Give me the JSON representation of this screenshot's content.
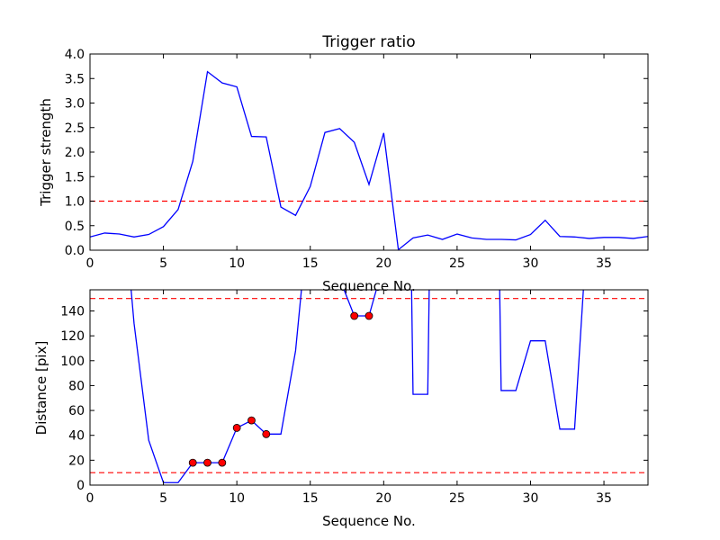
{
  "chart_data": [
    {
      "type": "line",
      "title": "Trigger ratio",
      "xlabel": "Sequence No.",
      "ylabel": "Trigger strength",
      "xlim": [
        0,
        38
      ],
      "ylim": [
        0,
        4
      ],
      "xticks": [
        "0",
        "5",
        "10",
        "15",
        "20",
        "25",
        "30",
        "35"
      ],
      "yticks": [
        "0.0",
        "0.5",
        "1.0",
        "1.5",
        "2.0",
        "2.5",
        "3.0",
        "3.5",
        "4.0"
      ],
      "threshold_lines": [
        1.0
      ],
      "line_color": "#0000ff",
      "threshold_color": "#ff0000",
      "series": [
        {
          "x": [
            0,
            1,
            2,
            3,
            4,
            5,
            6,
            7,
            8,
            9,
            10,
            11,
            12,
            13,
            14,
            15,
            16,
            17,
            18,
            19,
            20,
            21,
            22,
            23,
            24,
            25,
            26,
            27,
            28,
            29,
            30,
            31,
            32,
            33,
            34,
            35,
            36,
            37,
            38
          ],
          "values": [
            0.27,
            0.35,
            0.33,
            0.27,
            0.32,
            0.48,
            0.83,
            1.81,
            3.64,
            3.41,
            3.33,
            2.32,
            2.31,
            0.88,
            0.71,
            1.3,
            2.4,
            2.48,
            2.2,
            1.34,
            2.39,
            0.01,
            0.25,
            0.31,
            0.22,
            0.33,
            0.25,
            0.22,
            0.22,
            0.21,
            0.32,
            0.61,
            0.28,
            0.27,
            0.24,
            0.26,
            0.26,
            0.24,
            0.28
          ]
        }
      ]
    },
    {
      "type": "line",
      "title": "",
      "xlabel": "Sequence No.",
      "ylabel": "Distance [pix]",
      "xlim": [
        0,
        38
      ],
      "ylim": [
        0,
        157
      ],
      "xticks": [
        "0",
        "5",
        "10",
        "15",
        "20",
        "25",
        "30",
        "35"
      ],
      "yticks": [
        "0",
        "20",
        "40",
        "60",
        "80",
        "100",
        "120",
        "140"
      ],
      "threshold_lines": [
        10,
        150
      ],
      "line_color": "#0000ff",
      "threshold_color": "#ff0000",
      "marker_color": "#ff0000",
      "series": [
        {
          "x": [
            2.8,
            3,
            4,
            5,
            6,
            7,
            8,
            9,
            10,
            11,
            12,
            13,
            14,
            14.4
          ],
          "values": [
            157,
            130,
            36,
            2,
            2,
            18,
            18,
            18,
            46,
            52,
            41,
            41,
            108,
            157
          ]
        },
        {
          "x": [
            17.3,
            18,
            19,
            19.5
          ],
          "values": [
            157,
            136,
            136,
            157
          ]
        },
        {
          "x": [
            21.9,
            22,
            23,
            23.1
          ],
          "values": [
            157,
            73,
            73,
            157
          ]
        },
        {
          "x": [
            27.9,
            28,
            29,
            30,
            31,
            32,
            33,
            33.6
          ],
          "values": [
            157,
            76,
            76,
            116,
            116,
            45,
            45,
            157
          ]
        }
      ],
      "markers": {
        "x": [
          7,
          8,
          9,
          10,
          11,
          12,
          18,
          19
        ],
        "values": [
          18,
          18,
          18,
          46,
          52,
          41,
          136,
          136
        ]
      }
    }
  ]
}
